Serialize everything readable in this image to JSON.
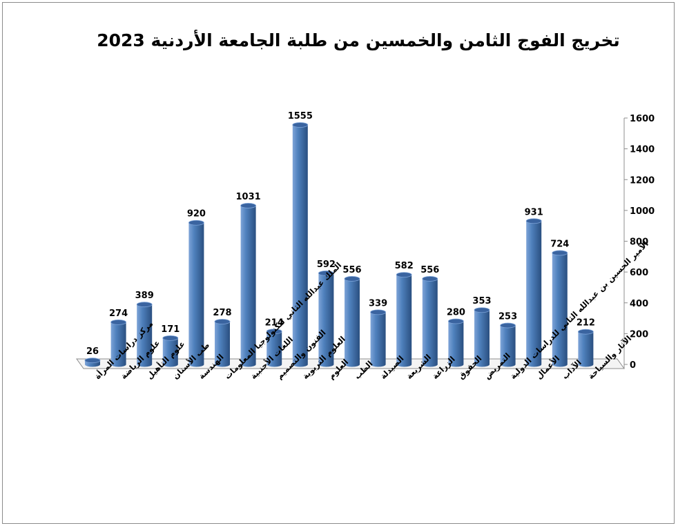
{
  "chart_data": {
    "type": "bar",
    "style": "3d-cylinder",
    "title": "تخريج الفوج الثامن والخمسين من طلبة الجامعة الأردنية 2023",
    "categories": [
      "مركز دراسات المرأة",
      "علوم الرياضة",
      "علوم التأهيل",
      "طب الأسنان",
      "الهندسة",
      "الملك عبدالله الثاني لتكنولوجيا المعلومات",
      "اللغات الأجنبية",
      "الفنون والتصميم",
      "العلوم التربوية",
      "العلوم",
      "الطب",
      "الصيدلة",
      "الشريعة",
      "الزراعة",
      "الحقوق",
      "التمريض",
      "الأمير الحسين بن عبدالله الثاني للدراسات الدولية",
      "الأعمال",
      "الآداب",
      "الآثار والسياحة"
    ],
    "values": [
      26,
      274,
      389,
      171,
      920,
      278,
      1031,
      214,
      1555,
      592,
      556,
      339,
      582,
      556,
      280,
      353,
      253,
      931,
      724,
      212
    ],
    "ylim": [
      0,
      1600
    ],
    "yticks": [
      0,
      200,
      400,
      600,
      800,
      1000,
      1200,
      1400,
      1600
    ],
    "y_axis_side": "right",
    "xlabel": "",
    "ylabel": "",
    "grid": false,
    "legend": "none",
    "colors": {
      "bar_light": "#7EA4D8",
      "bar_mid": "#4F81BD",
      "bar_dark": "#2A4F80",
      "bar_top": "#3A64A0",
      "axis": "#8c8c8c"
    }
  }
}
